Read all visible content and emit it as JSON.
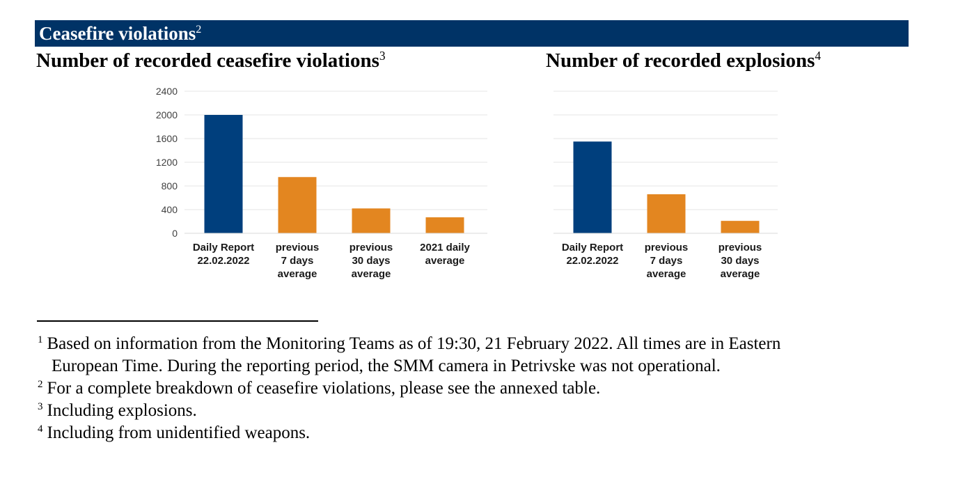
{
  "header": {
    "title": "Ceasefire violations",
    "title_note": "2"
  },
  "charts_meta": [
    {
      "subtitle": "Number of recorded ceasefire violations",
      "note": "3"
    },
    {
      "subtitle": "Number of recorded explosions",
      "note": "4"
    }
  ],
  "chart_data": [
    {
      "type": "bar",
      "title": "Number of recorded ceasefire violations",
      "categories": [
        [
          "Daily Report",
          "22.02.2022"
        ],
        [
          "previous",
          "7 days",
          "average"
        ],
        [
          "previous",
          "30 days",
          "average"
        ],
        [
          "2021 daily",
          "average"
        ]
      ],
      "values": [
        2000,
        950,
        420,
        270
      ],
      "bar_colors": [
        "#003f7d",
        "#e38620",
        "#e38620",
        "#e38620"
      ],
      "yticks": [
        "0",
        "400",
        "800",
        "1200",
        "1600",
        "2000",
        "2400"
      ],
      "ylim": [
        0,
        2400
      ],
      "grid": true
    },
    {
      "type": "bar",
      "title": "Number of recorded explosions",
      "categories": [
        [
          "Daily Report",
          "22.02.2022"
        ],
        [
          "previous",
          "7 days",
          "average"
        ],
        [
          "previous",
          "30 days",
          "average"
        ]
      ],
      "values": [
        1550,
        660,
        210
      ],
      "bar_colors": [
        "#003f7d",
        "#e38620",
        "#e38620"
      ],
      "ylim": [
        0,
        2400
      ],
      "grid": true
    }
  ],
  "footnotes": [
    {
      "num": "1",
      "lines": [
        "Based on information from the Monitoring Teams as of 19:30, 21 February 2022. All times are in Eastern",
        "European Time. During the reporting period, the SMM camera in Petrivske was not operational."
      ]
    },
    {
      "num": "2",
      "lines": [
        "For a complete breakdown of ceasefire violations, please see the annexed table."
      ]
    },
    {
      "num": "3",
      "lines": [
        "Including explosions."
      ]
    },
    {
      "num": "4",
      "lines": [
        "Including from unidentified weapons."
      ]
    }
  ]
}
